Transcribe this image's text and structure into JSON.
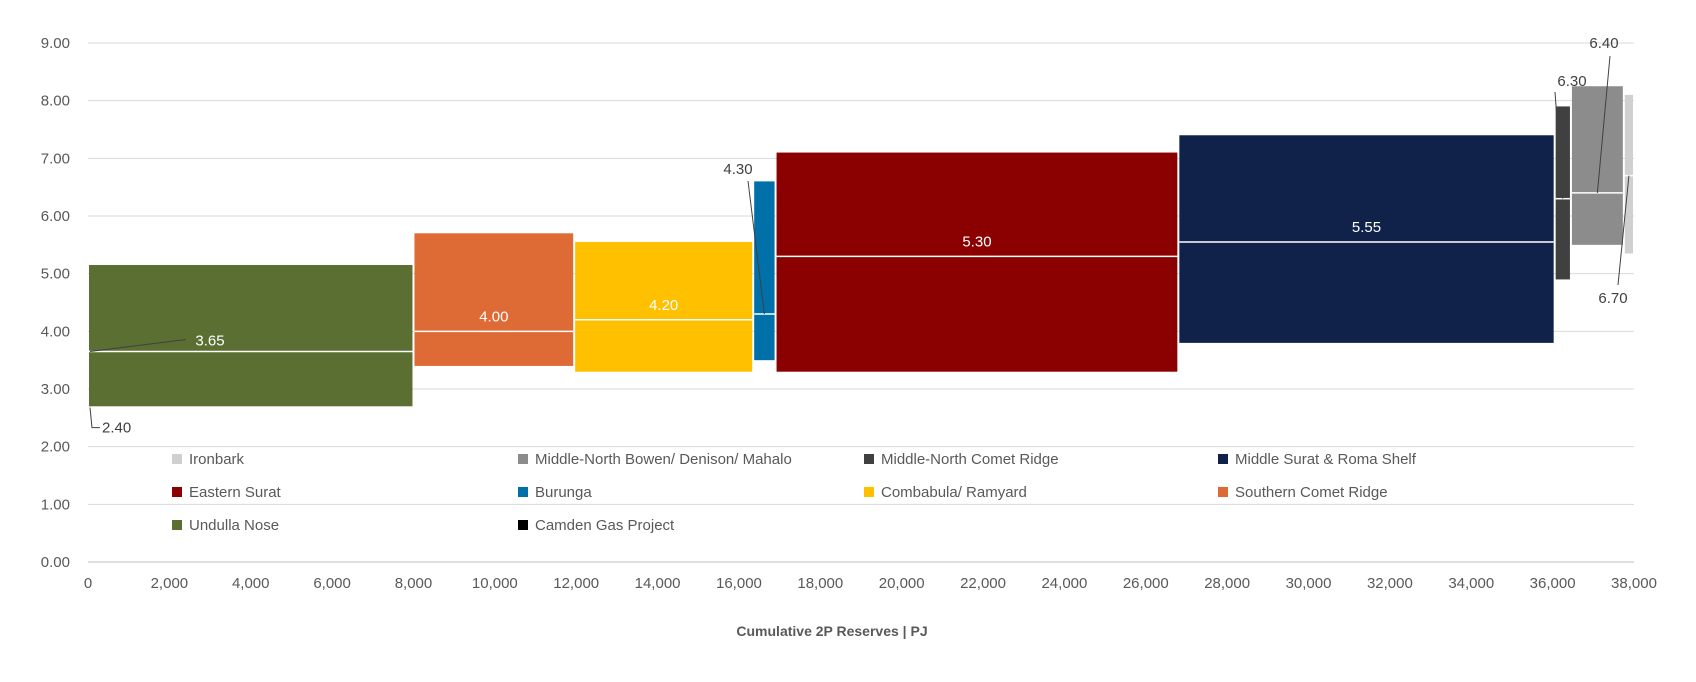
{
  "chart_data": {
    "type": "variable-width-bar",
    "xlabel": "Cumulative 2P Reserves | PJ",
    "ylabel": "",
    "xlim": [
      0,
      38000
    ],
    "ylim": [
      0,
      9
    ],
    "x_ticks": [
      "0",
      "2,000",
      "4,000",
      "6,000",
      "8,000",
      "10,000",
      "12,000",
      "14,000",
      "16,000",
      "18,000",
      "20,000",
      "22,000",
      "24,000",
      "26,000",
      "28,000",
      "30,000",
      "32,000",
      "34,000",
      "36,000",
      "38,000"
    ],
    "y_ticks": [
      "0.00",
      "1.00",
      "2.00",
      "3.00",
      "4.00",
      "5.00",
      "6.00",
      "7.00",
      "8.00",
      "9.00"
    ],
    "grid": true,
    "legend_position": "inside-bottom",
    "series": [
      {
        "name": "Undulla Nose",
        "color": "#5A6F31",
        "x_start": 0,
        "x_end": 8000,
        "low": 2.7,
        "high": 5.15,
        "mid": 3.65,
        "label": "3.65"
      },
      {
        "name": "Southern Comet Ridge",
        "color": "#DE6B35",
        "x_start": 8000,
        "x_end": 11950,
        "low": 3.4,
        "high": 5.7,
        "mid": 4.0,
        "label": "4.00"
      },
      {
        "name": "Combabula/ Ramyard",
        "color": "#FFC000",
        "x_start": 11950,
        "x_end": 16350,
        "low": 3.3,
        "high": 5.55,
        "mid": 4.2,
        "label": "4.20"
      },
      {
        "name": "Burunga",
        "color": "#0070A8",
        "x_start": 16350,
        "x_end": 16900,
        "low": 3.5,
        "high": 6.6,
        "mid": 4.3,
        "label": "4.30"
      },
      {
        "name": "Eastern Surat",
        "color": "#8B0000",
        "x_start": 16900,
        "x_end": 26800,
        "low": 3.3,
        "high": 7.1,
        "mid": 5.3,
        "label": "5.30"
      },
      {
        "name": "Middle Surat & Roma Shelf",
        "color": "#10224A",
        "x_start": 26800,
        "x_end": 36050,
        "low": 3.8,
        "high": 7.4,
        "mid": 5.55,
        "label": "5.55"
      },
      {
        "name": "Middle-North Comet Ridge",
        "color": "#404040",
        "x_start": 36050,
        "x_end": 36450,
        "low": 4.9,
        "high": 7.9,
        "mid": 6.3,
        "label": "6.30"
      },
      {
        "name": "Middle-North Bowen/ Denison/ Mahalo",
        "color": "#8C8C8C",
        "x_start": 36450,
        "x_end": 37750,
        "low": 5.5,
        "high": 8.25,
        "mid": 6.4,
        "label": "6.40"
      },
      {
        "name": "Ironbark",
        "color": "#D0D0D0",
        "x_start": 37750,
        "x_end": 38000,
        "low": 5.35,
        "high": 8.1,
        "mid": 6.7,
        "label": "6.70"
      }
    ],
    "annotations": [
      {
        "text": "2.40",
        "x": 0,
        "y": 2.4
      }
    ],
    "legend": [
      {
        "name": "Ironbark",
        "color": "#D0D0D0"
      },
      {
        "name": "Middle-North Bowen/ Denison/ Mahalo",
        "color": "#8C8C8C"
      },
      {
        "name": "Middle-North Comet Ridge",
        "color": "#404040"
      },
      {
        "name": "Middle Surat & Roma Shelf",
        "color": "#10224A"
      },
      {
        "name": "Eastern Surat",
        "color": "#8B0000"
      },
      {
        "name": "Burunga",
        "color": "#0070A8"
      },
      {
        "name": "Combabula/ Ramyard",
        "color": "#FFC000"
      },
      {
        "name": "Southern Comet Ridge",
        "color": "#DE6B35"
      },
      {
        "name": "Undulla Nose",
        "color": "#5A6F31"
      },
      {
        "name": "Camden Gas Project",
        "color": "#000000"
      }
    ]
  }
}
